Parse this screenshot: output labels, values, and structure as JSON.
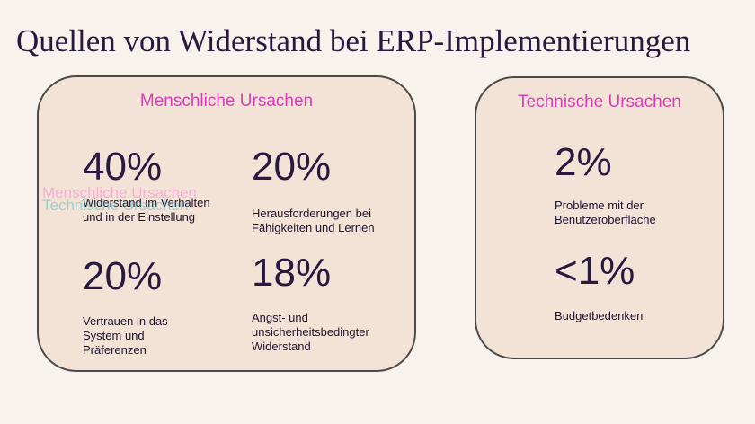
{
  "slide": {
    "title": "Quellen von Widerstand bei ERP-Implementierungen"
  },
  "left_panel": {
    "heading": "Menschliche Ursachen",
    "stats": [
      {
        "value": "40%",
        "label": "Widerstand im Verhalten und in der Einstellung"
      },
      {
        "value": "20%",
        "label": "Herausforderungen bei Fähigkeiten und Lernen"
      },
      {
        "value": "20%",
        "label": "Vertrauen in das System und Präferenzen"
      },
      {
        "value": "18%",
        "label": "Angst- und unsicherheitsbedingter Widerstand"
      }
    ],
    "ghost_text_1": "Menschliche Ursachen",
    "ghost_text_2": "Technische Ursachen"
  },
  "right_panel": {
    "heading": "Technische Ursachen",
    "stats": [
      {
        "value": "2%",
        "label": "Probleme mit der Benutzeroberfläche"
      },
      {
        "value": "<1%",
        "label": "Budgetbedenken"
      }
    ]
  },
  "colors": {
    "background": "#f7f2eb",
    "panel": "#f3e3d7",
    "heading_accent": "#d63fb4",
    "text": "#2a1840"
  }
}
